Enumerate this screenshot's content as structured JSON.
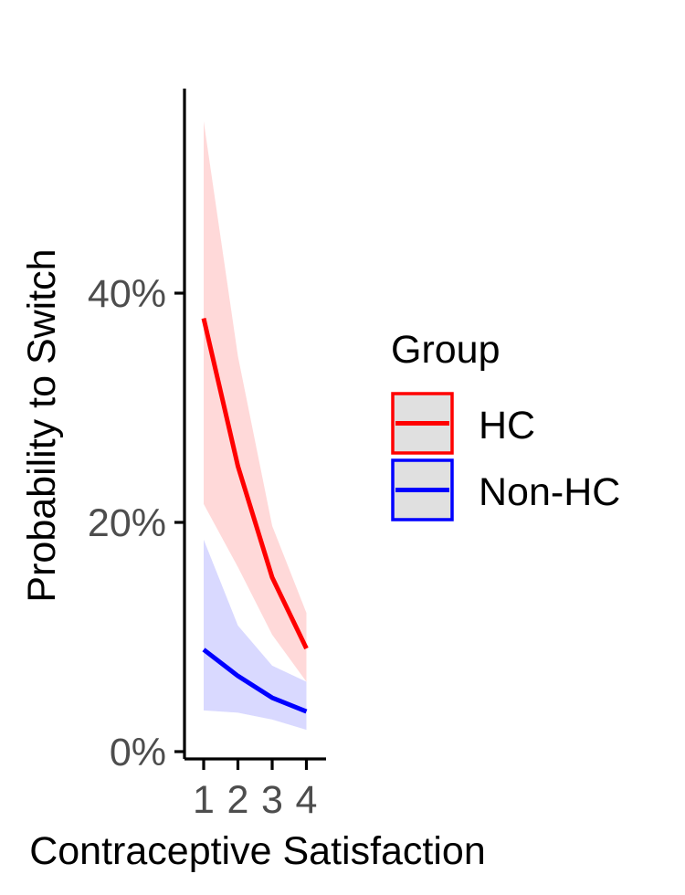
{
  "chart_data": {
    "type": "line",
    "title": "",
    "xlabel": "Contraceptive Satisfaction",
    "ylabel": "Probability to Switch",
    "x": [
      1,
      2,
      3,
      4
    ],
    "x_ticks": [
      1,
      2,
      3,
      4
    ],
    "x_tick_labels": [
      "1",
      "2",
      "3",
      "4"
    ],
    "xlim": [
      0.95,
      4.05
    ],
    "ylim": [
      0,
      55
    ],
    "y_ticks": [
      0,
      20,
      40
    ],
    "y_tick_labels": [
      "0%",
      "20%",
      "40%"
    ],
    "grid": false,
    "legend": {
      "title": "Group",
      "placement": "right"
    },
    "series": [
      {
        "name": "HC",
        "color": "#ff0000",
        "band_color": "#ffd9d9",
        "values": [
          37.8,
          24.9,
          15.2,
          9.0
        ],
        "lower": [
          21.6,
          16.1,
          10.2,
          6.1
        ],
        "upper": [
          55.0,
          34.5,
          19.7,
          12.1
        ]
      },
      {
        "name": "Non-HC",
        "color": "#0000ff",
        "band_color": "#d9d9ff",
        "values": [
          8.9,
          6.6,
          4.7,
          3.5
        ],
        "lower": [
          3.6,
          3.4,
          2.8,
          1.9
        ],
        "upper": [
          18.5,
          11.0,
          7.5,
          6.1
        ]
      }
    ]
  }
}
